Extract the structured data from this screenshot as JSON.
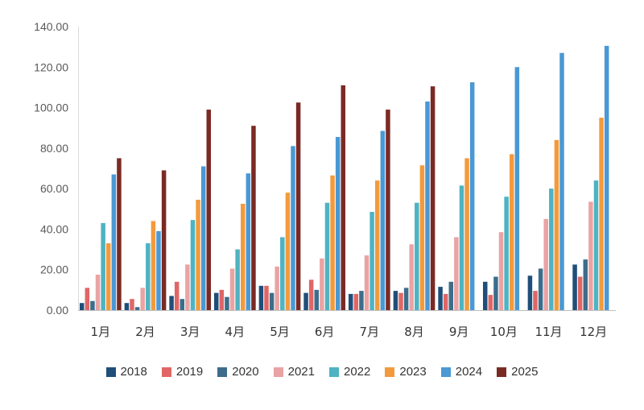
{
  "chart_data": {
    "type": "bar",
    "categories": [
      "1月",
      "2月",
      "3月",
      "4月",
      "5月",
      "6月",
      "7月",
      "8月",
      "9月",
      "10月",
      "11月",
      "12月"
    ],
    "ylim": [
      0,
      140
    ],
    "yticks": [
      "0.00",
      "20.00",
      "40.00",
      "60.00",
      "80.00",
      "100.00",
      "120.00",
      "140.00"
    ],
    "grid": false,
    "legend_position": "bottom",
    "series": [
      {
        "name": "2018",
        "color": "#1f4e79",
        "values": [
          3.5,
          3.5,
          7.0,
          8.5,
          12.0,
          8.5,
          8.0,
          9.5,
          11.5,
          14.0,
          17.0,
          22.5
        ]
      },
      {
        "name": "2019",
        "color": "#e06666",
        "values": [
          11.0,
          5.5,
          14.0,
          10.0,
          12.0,
          15.0,
          8.0,
          8.5,
          8.0,
          7.5,
          9.5,
          16.5
        ]
      },
      {
        "name": "2020",
        "color": "#3d6d8a",
        "values": [
          4.5,
          1.5,
          5.5,
          6.5,
          8.5,
          10.0,
          9.5,
          11.0,
          14.0,
          16.5,
          20.5,
          25.0
        ]
      },
      {
        "name": "2021",
        "color": "#eaa3a3",
        "values": [
          17.5,
          11.0,
          22.5,
          20.5,
          21.5,
          25.5,
          27.0,
          32.5,
          36.0,
          38.5,
          45.0,
          53.5
        ]
      },
      {
        "name": "2022",
        "color": "#4eb3c2",
        "values": [
          43.0,
          33.0,
          44.5,
          30.0,
          36.0,
          53.0,
          48.5,
          53.0,
          61.5,
          56.0,
          60.0,
          64.0
        ]
      },
      {
        "name": "2023",
        "color": "#f39a3c",
        "values": [
          33.0,
          44.0,
          54.5,
          52.5,
          58.0,
          66.5,
          64.0,
          71.5,
          75.0,
          77.0,
          84.0,
          95.0
        ]
      },
      {
        "name": "2024",
        "color": "#4a98d4",
        "values": [
          67.0,
          39.0,
          71.0,
          67.5,
          81.0,
          85.5,
          88.5,
          103.0,
          112.5,
          120.0,
          127.0,
          130.5
        ]
      },
      {
        "name": "2025",
        "color": "#7a2a24",
        "values": [
          75.0,
          69.0,
          99.0,
          91.0,
          102.5,
          111.0,
          99.0,
          110.5,
          null,
          null,
          null,
          null
        ]
      }
    ]
  }
}
